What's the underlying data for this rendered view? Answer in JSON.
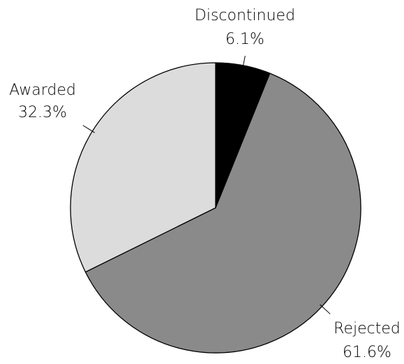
{
  "chart_data": {
    "type": "pie",
    "title": "",
    "start": "12 o'clock",
    "direction": "clockwise",
    "slices": [
      {
        "label": "Discontinued",
        "value": 6.1,
        "display": "6.1%",
        "color": "#000000"
      },
      {
        "label": "Rejected",
        "value": 61.6,
        "display": "61.6%",
        "color": "#8a8a8a"
      },
      {
        "label": "Awarded",
        "value": 32.3,
        "display": "32.3%",
        "color": "#dcdcdc"
      }
    ]
  }
}
